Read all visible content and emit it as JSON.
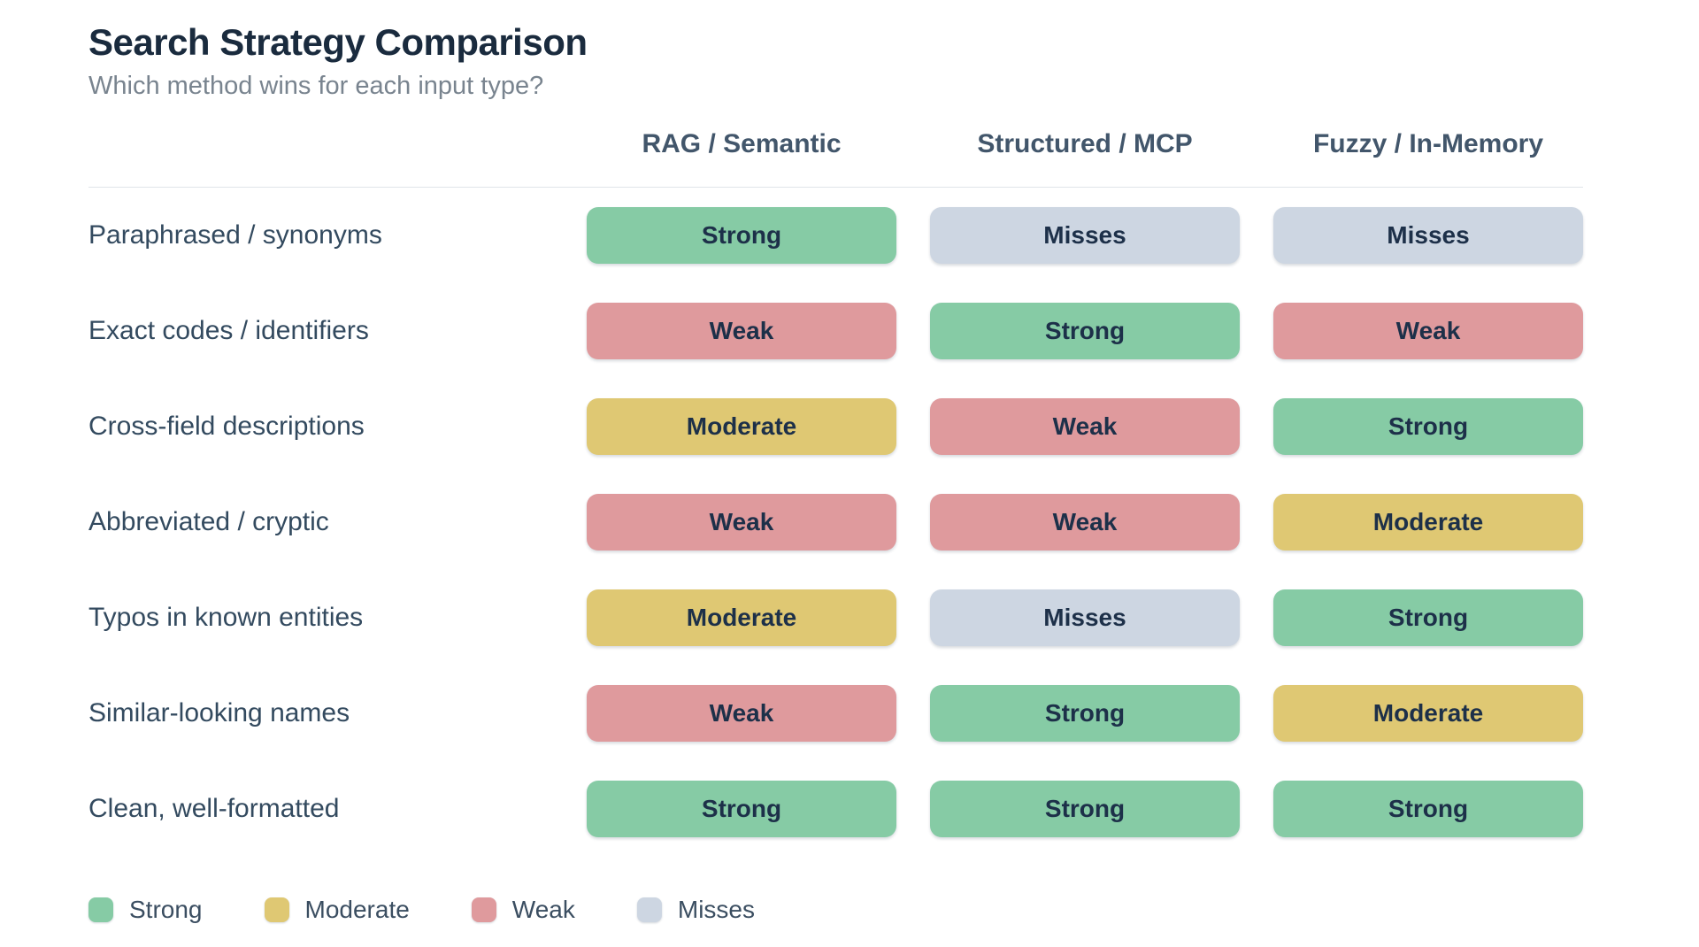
{
  "title": "Search Strategy Comparison",
  "subtitle": "Which method wins for each input type?",
  "rating_colors": {
    "Strong": "#86cba5",
    "Moderate": "#dfc873",
    "Weak": "#df9a9d",
    "Misses": "#cdd6e2"
  },
  "chart_data": {
    "type": "table",
    "title": "Search Strategy Comparison",
    "subtitle": "Which method wins for each input type?",
    "columns": [
      "RAG / Semantic",
      "Structured / MCP",
      "Fuzzy / In-Memory"
    ],
    "rows": [
      "Paraphrased / synonyms",
      "Exact codes / identifiers",
      "Cross-field descriptions",
      "Abbreviated / cryptic",
      "Typos in known entities",
      "Similar-looking names",
      "Clean, well-formatted"
    ],
    "values": [
      [
        "Strong",
        "Misses",
        "Misses"
      ],
      [
        "Weak",
        "Strong",
        "Weak"
      ],
      [
        "Moderate",
        "Weak",
        "Strong"
      ],
      [
        "Weak",
        "Weak",
        "Moderate"
      ],
      [
        "Moderate",
        "Misses",
        "Strong"
      ],
      [
        "Weak",
        "Strong",
        "Moderate"
      ],
      [
        "Strong",
        "Strong",
        "Strong"
      ]
    ],
    "legend": [
      "Strong",
      "Moderate",
      "Weak",
      "Misses"
    ],
    "legend_position": "bottom",
    "grid": false
  }
}
